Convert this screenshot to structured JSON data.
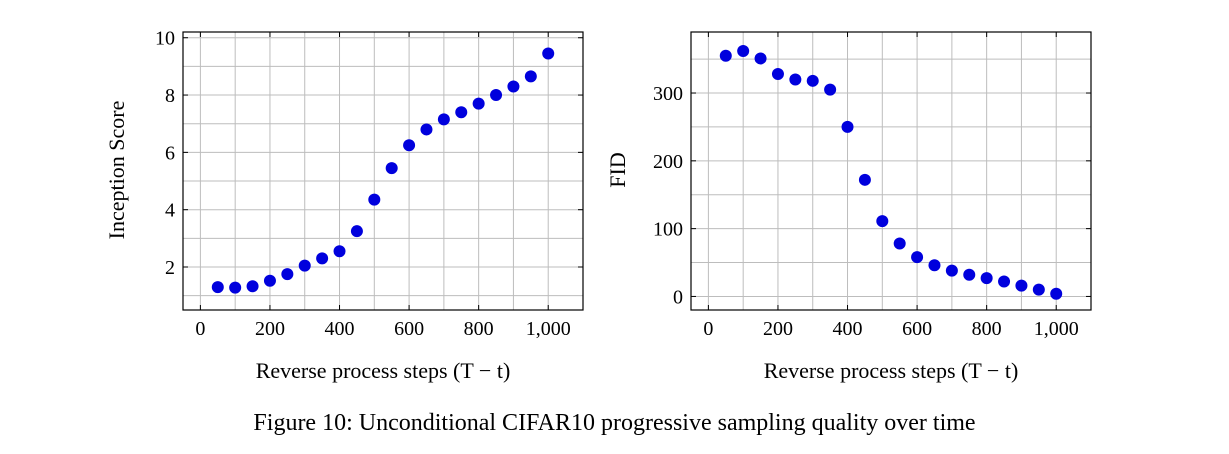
{
  "caption": "Figure 10: Unconditional CIFAR10 progressive sampling quality over time",
  "colors": {
    "marker": "#0000dd",
    "grid": "#bdbdbd",
    "axis": "#000000"
  },
  "chart_data": [
    {
      "type": "scatter",
      "title": "",
      "xlabel": "Reverse process steps (T − t)",
      "ylabel": "Inception Score",
      "xlim": [
        -50,
        1100
      ],
      "ylim": [
        0.5,
        10.2
      ],
      "grid": true,
      "x_ticks": [
        0,
        200,
        400,
        600,
        800,
        1000
      ],
      "x_tick_labels": [
        "0",
        "200",
        "400",
        "600",
        "800",
        "1,000"
      ],
      "y_ticks": [
        2,
        4,
        6,
        8,
        10
      ],
      "y_tick_labels": [
        "2",
        "4",
        "6",
        "8",
        "10"
      ],
      "x": [
        50,
        100,
        150,
        200,
        250,
        300,
        350,
        400,
        450,
        500,
        550,
        600,
        650,
        700,
        750,
        800,
        850,
        900,
        950,
        1000
      ],
      "y": [
        1.3,
        1.28,
        1.33,
        1.52,
        1.75,
        2.05,
        2.3,
        2.55,
        3.25,
        4.35,
        5.45,
        6.25,
        6.8,
        7.15,
        7.4,
        7.7,
        8.0,
        8.3,
        8.65,
        9.45
      ]
    },
    {
      "type": "scatter",
      "title": "",
      "xlabel": "Reverse process steps (T − t)",
      "ylabel": "FID",
      "xlim": [
        -50,
        1100
      ],
      "ylim": [
        -20,
        390
      ],
      "grid": true,
      "x_ticks": [
        0,
        200,
        400,
        600,
        800,
        1000
      ],
      "x_tick_labels": [
        "0",
        "200",
        "400",
        "600",
        "800",
        "1,000"
      ],
      "y_ticks": [
        0,
        100,
        200,
        300
      ],
      "y_tick_labels": [
        "0",
        "100",
        "200",
        "300"
      ],
      "x": [
        50,
        100,
        150,
        200,
        250,
        300,
        350,
        400,
        450,
        500,
        550,
        600,
        650,
        700,
        750,
        800,
        850,
        900,
        950,
        1000
      ],
      "y": [
        355,
        362,
        351,
        328,
        320,
        318,
        305,
        250,
        172,
        111,
        78,
        58,
        46,
        38,
        32,
        27,
        22,
        16,
        10,
        4
      ]
    }
  ]
}
